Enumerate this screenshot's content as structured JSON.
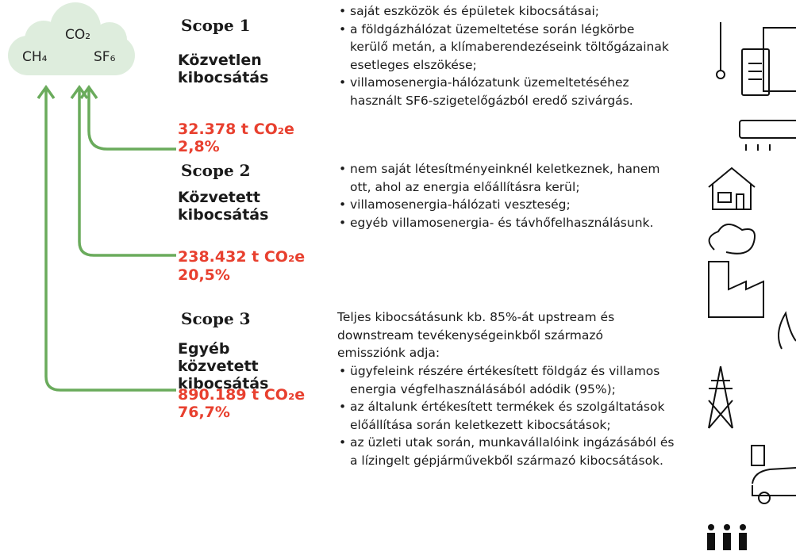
{
  "cloud": {
    "gases": [
      "CO₂",
      "CH₄",
      "SF₆"
    ]
  },
  "scopes": [
    {
      "label": "Scope 1",
      "name": "Közvetlen kibocsátás",
      "amount": "32.378 t CO₂e",
      "share": "2,8%",
      "bullets": [
        "saját eszközök és épületek kibocsátásai;",
        "a földgázhálózat üzemeltetése során légkörbe kerülő metán, a klímaberendezéseink töltőgázainak esetleges elszökése;",
        "villamosenergia-hálózatunk üzemeltetéséhez használt SF6-szigetelőgázból eredő szivárgás."
      ]
    },
    {
      "label": "Scope 2",
      "name": "Közvetett kibocsátás",
      "amount": "238.432 t CO₂e",
      "share": "20,5%",
      "bullets": [
        "nem saját létesítményeinknél keletkeznek, hanem ott, ahol az energia előállításra kerül;",
        "villamosenergia-hálózati veszteség;",
        "egyéb villamosenergia- és távhőfelhasználásunk."
      ]
    },
    {
      "label": "Scope 3",
      "name": "Egyéb közvetett kibocsátás",
      "amount": "890.189 t CO₂e",
      "share": "76,7%",
      "intro": "Teljes kibocsátásunk kb. 85%-át upstream és downstream tevékenységeinkből származó emissziónk adja:",
      "bullets": [
        "ügyfeleink részére értékesített földgáz és villamos energia végfelhasználásából adódik (95%);",
        "az általunk értékesített termékek és szolgáltatások előállítása során keletkezett kibocsátások;",
        "az üzleti utak során, munkavállalóink ingázásából és a lízingelt gépjárművekből származó kibocsátások."
      ]
    }
  ]
}
